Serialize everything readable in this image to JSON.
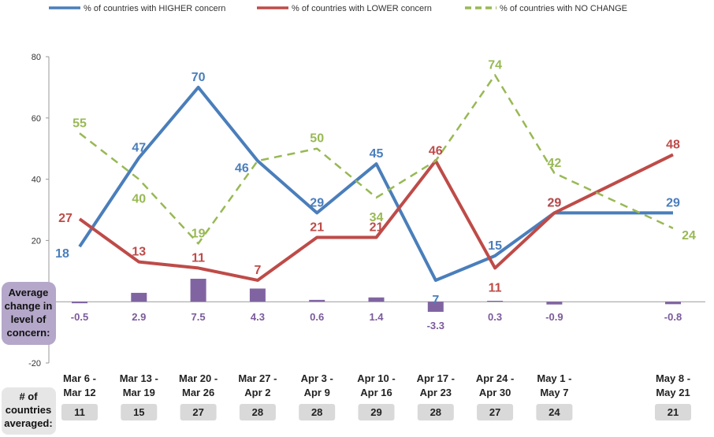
{
  "chart_data": {
    "type": "line",
    "categories": [
      [
        "Mar 6 -",
        "Mar 12"
      ],
      [
        "Mar 13 -",
        "Mar 19"
      ],
      [
        "Mar 20 -",
        "Mar 26"
      ],
      [
        "Mar 27 -",
        "Apr 2"
      ],
      [
        "Apr 3 -",
        "Apr 9"
      ],
      [
        "Apr 10 -",
        "Apr 16"
      ],
      [
        "Apr 17 -",
        "Apr 23"
      ],
      [
        "Apr 24 -",
        "Apr 30"
      ],
      [
        "May 1 -",
        "May 7"
      ],
      [
        "",
        ""
      ],
      [
        "May 8 -",
        "May 21"
      ]
    ],
    "ylim": [
      -20,
      80
    ],
    "yticks": [
      -20,
      20,
      40,
      60,
      80
    ],
    "series": [
      {
        "name": "% of countries with HIGHER concern",
        "color": "#4a7ebb",
        "dash": false,
        "values": [
          18,
          47,
          70,
          46,
          29,
          45,
          7,
          15,
          29,
          29,
          29
        ],
        "labels": [
          "18",
          "47",
          "70",
          "46",
          "29",
          "45",
          "7",
          "15",
          "29",
          "",
          "29"
        ]
      },
      {
        "name": "% of countries with LOWER concern",
        "color": "#be4b48",
        "dash": false,
        "values": [
          27,
          13,
          11,
          7,
          21,
          21,
          46,
          11,
          29,
          null,
          48
        ],
        "labels": [
          "27",
          "13",
          "11",
          "7",
          "21",
          "21",
          "46",
          "11",
          "29",
          "",
          "48"
        ]
      },
      {
        "name": "% of countries with NO CHANGE",
        "color": "#98b954",
        "dash": true,
        "values": [
          55,
          40,
          19,
          46,
          50,
          34,
          46,
          74,
          42,
          null,
          24
        ],
        "labels": [
          "55",
          "40",
          "19",
          "",
          "50",
          "34",
          "",
          "74",
          "42",
          "",
          "24"
        ]
      }
    ],
    "bars": {
      "color": "#8064a2",
      "values": [
        -0.5,
        2.9,
        7.5,
        4.3,
        0.6,
        1.4,
        -3.3,
        0.3,
        -0.9,
        null,
        -0.8
      ],
      "labels": [
        "-0.5",
        "2.9",
        "7.5",
        "4.3",
        "0.6",
        "1.4",
        "-3.3",
        "0.3",
        "-0.9",
        "",
        "-0.8"
      ]
    },
    "counts": [
      "11",
      "15",
      "27",
      "28",
      "28",
      "29",
      "28",
      "27",
      "24",
      "",
      "21"
    ],
    "side_label_bars": [
      "Average",
      "change in",
      "level of",
      "concern:"
    ],
    "side_label_counts": [
      "# of",
      "countries",
      "averaged:"
    ]
  }
}
